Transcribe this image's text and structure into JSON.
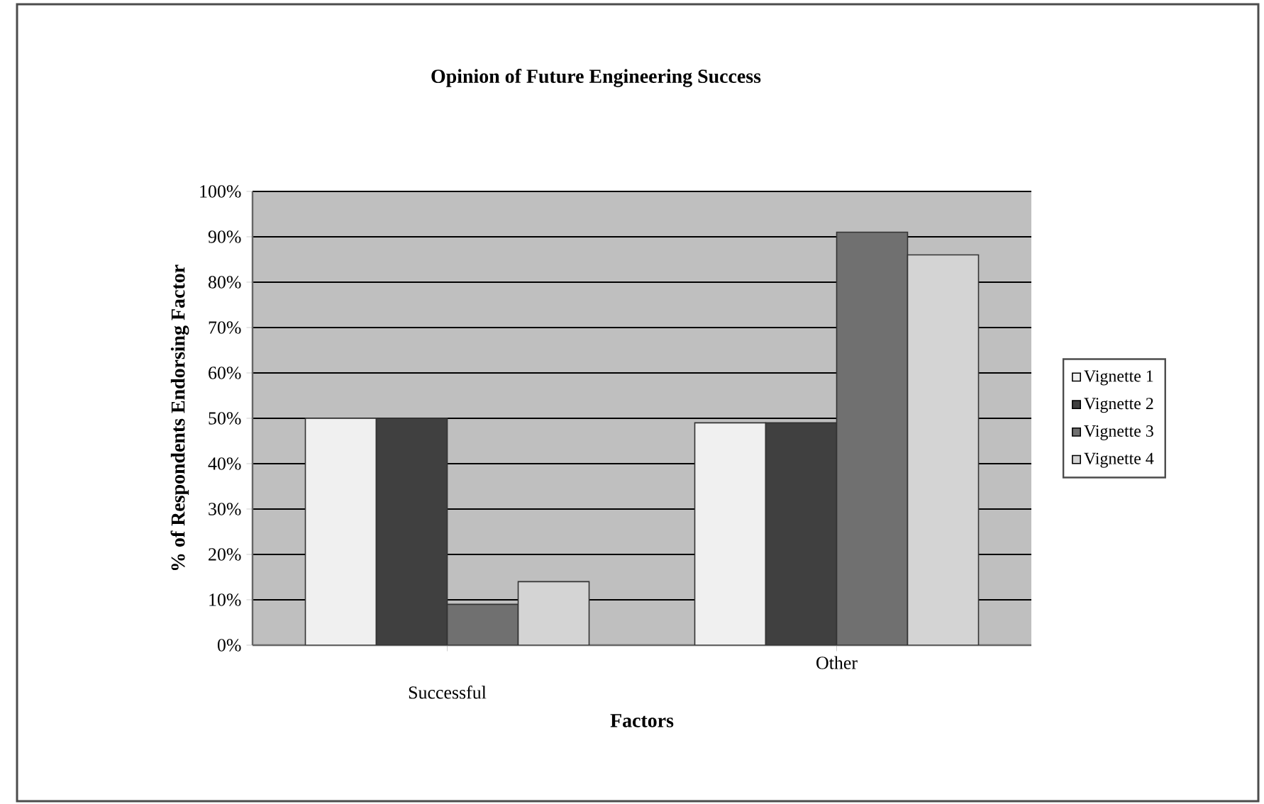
{
  "chart_data": {
    "type": "bar",
    "title": "Opinion of Future Engineering Success",
    "xlabel": "Factors",
    "ylabel": "% of Respondents Endorsing Factor",
    "categories": [
      "Successful",
      "Other"
    ],
    "series": [
      {
        "name": "Vignette 1",
        "color": "#f0f0f0",
        "values": [
          50,
          49
        ]
      },
      {
        "name": "Vignette 2",
        "color": "#404040",
        "values": [
          50,
          49
        ]
      },
      {
        "name": "Vignette 3",
        "color": "#707070",
        "values": [
          9,
          91
        ]
      },
      {
        "name": "Vignette 4",
        "color": "#d4d4d4",
        "values": [
          14,
          86
        ]
      }
    ],
    "ylim": [
      0,
      100
    ],
    "yticks": [
      {
        "value": 0,
        "label": "0%"
      },
      {
        "value": 10,
        "label": "10%"
      },
      {
        "value": 20,
        "label": "20%"
      },
      {
        "value": 30,
        "label": "30%"
      },
      {
        "value": 40,
        "label": "40%"
      },
      {
        "value": 50,
        "label": "50%"
      },
      {
        "value": 60,
        "label": "60%"
      },
      {
        "value": 70,
        "label": "70%"
      },
      {
        "value": 80,
        "label": "80%"
      },
      {
        "value": 90,
        "label": "90%"
      },
      {
        "value": 100,
        "label": "100%"
      }
    ],
    "grid": "y",
    "legend": "right"
  }
}
